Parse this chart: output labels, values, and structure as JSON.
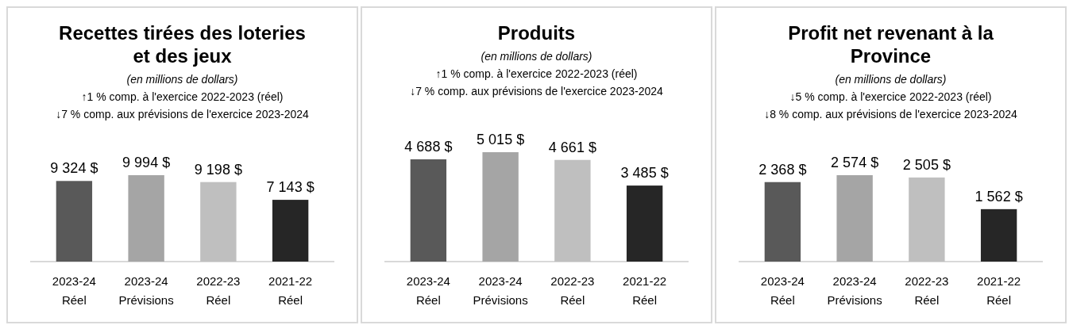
{
  "chart_data": [
    {
      "type": "bar",
      "title": "Recettes tirées des loteries et des jeux",
      "subtitle": "(en millions de dollars)",
      "annotations": [
        "↑1 % comp. à l'exercice 2022-2023 (réel)",
        "↓7 % comp. aux prévisions de l'exercice 2023-2024"
      ],
      "categories": [
        "2023-24 Réel",
        "2023-24 Prévisions",
        "2022-23 Réel",
        "2021-22 Réel"
      ],
      "values": [
        9324,
        9994,
        9198,
        7143
      ],
      "colors": [
        "#595959",
        "#a5a5a5",
        "#bfbfbf",
        "#262626"
      ],
      "value_labels": [
        "9 324 $",
        "9 994 $",
        "9 198 $",
        "7 143 $"
      ]
    },
    {
      "type": "bar",
      "title": "Produits",
      "subtitle": "(en millions de dollars)",
      "annotations": [
        "↑1 % comp. à l'exercice 2022-2023 (réel)",
        "↓7 % comp. aux prévisions de l'exercice 2023-2024"
      ],
      "categories": [
        "2023-24 Réel",
        "2023-24 Prévisions",
        "2022-23 Réel",
        "2021-22 Réel"
      ],
      "values": [
        4688,
        5015,
        4661,
        3485
      ],
      "colors": [
        "#595959",
        "#a5a5a5",
        "#bfbfbf",
        "#262626"
      ],
      "value_labels": [
        "4 688 $",
        "5 015 $",
        "4 661 $",
        "3 485 $"
      ]
    },
    {
      "type": "bar",
      "title": "Profit net revenant à la Province",
      "subtitle": "(en millions de dollars)",
      "annotations": [
        "↓5 % comp. à l'exercice 2022-2023 (réel)",
        "↓8 % comp. aux prévisions de l'exercice 2023-2024"
      ],
      "categories": [
        "2023-24 Réel",
        "2023-24 Prévisions",
        "2022-23 Réel",
        "2021-22 Réel"
      ],
      "values": [
        2368,
        2574,
        2505,
        1562
      ],
      "colors": [
        "#595959",
        "#a5a5a5",
        "#bfbfbf",
        "#262626"
      ],
      "value_labels": [
        "2 368 $",
        "2 574 $",
        "2 505 $",
        "1 562 $"
      ]
    }
  ]
}
